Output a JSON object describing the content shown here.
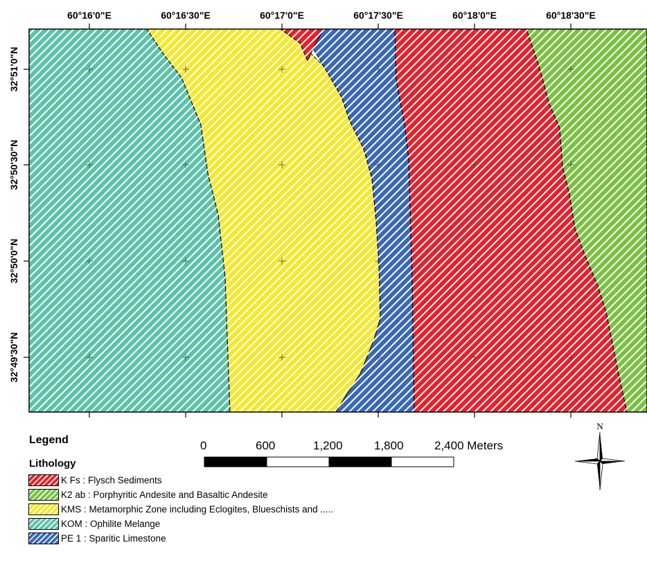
{
  "lon_labels": [
    "60°16'0\"E",
    "60°16'30\"E",
    "60°17'0\"E",
    "60°17'30\"E",
    "60°18'0\"E",
    "60°18'30\"E"
  ],
  "lat_labels": [
    "32°51'0\"N",
    "32°50'30\"N",
    "32°50'0\"N",
    "32°49'30\"N"
  ],
  "units": [
    {
      "code": "K Fs",
      "name": "Flysch Sediments",
      "label": "K Fs : Flysch Sediments",
      "color": "#e8202b"
    },
    {
      "code": "K2 ab",
      "name": "Porphyritic Andesite and Basaltic Andesite",
      "label": "K2 ab : Porphyritic Andesite and Basaltic  Andesite",
      "color": "#7ac143"
    },
    {
      "code": "KMS",
      "name": "Metamorphic Zone including Eclogites, Blueschists and .....",
      "label": "KMS : Metamorphic Zone including Eclogites, Blueschists and .....",
      "color": "#f4e82c"
    },
    {
      "code": "KOM",
      "name": "Ophilite Melange",
      "label": "KOM : Ophilite Melange",
      "color": "#5cc2a8"
    },
    {
      "code": "PE 1",
      "name": "Sparitic Limestone",
      "label": "PE 1 : Sparitic Limestone",
      "color": "#3a68b8"
    }
  ],
  "legend": {
    "title": "Legend",
    "subtitle": "Lithology"
  },
  "scale_bar": {
    "labels": [
      "0",
      "600",
      "1,200",
      "1,800",
      "2,400 Meters"
    ],
    "unit": "Meters"
  },
  "north_arrow": {
    "label": "N"
  }
}
